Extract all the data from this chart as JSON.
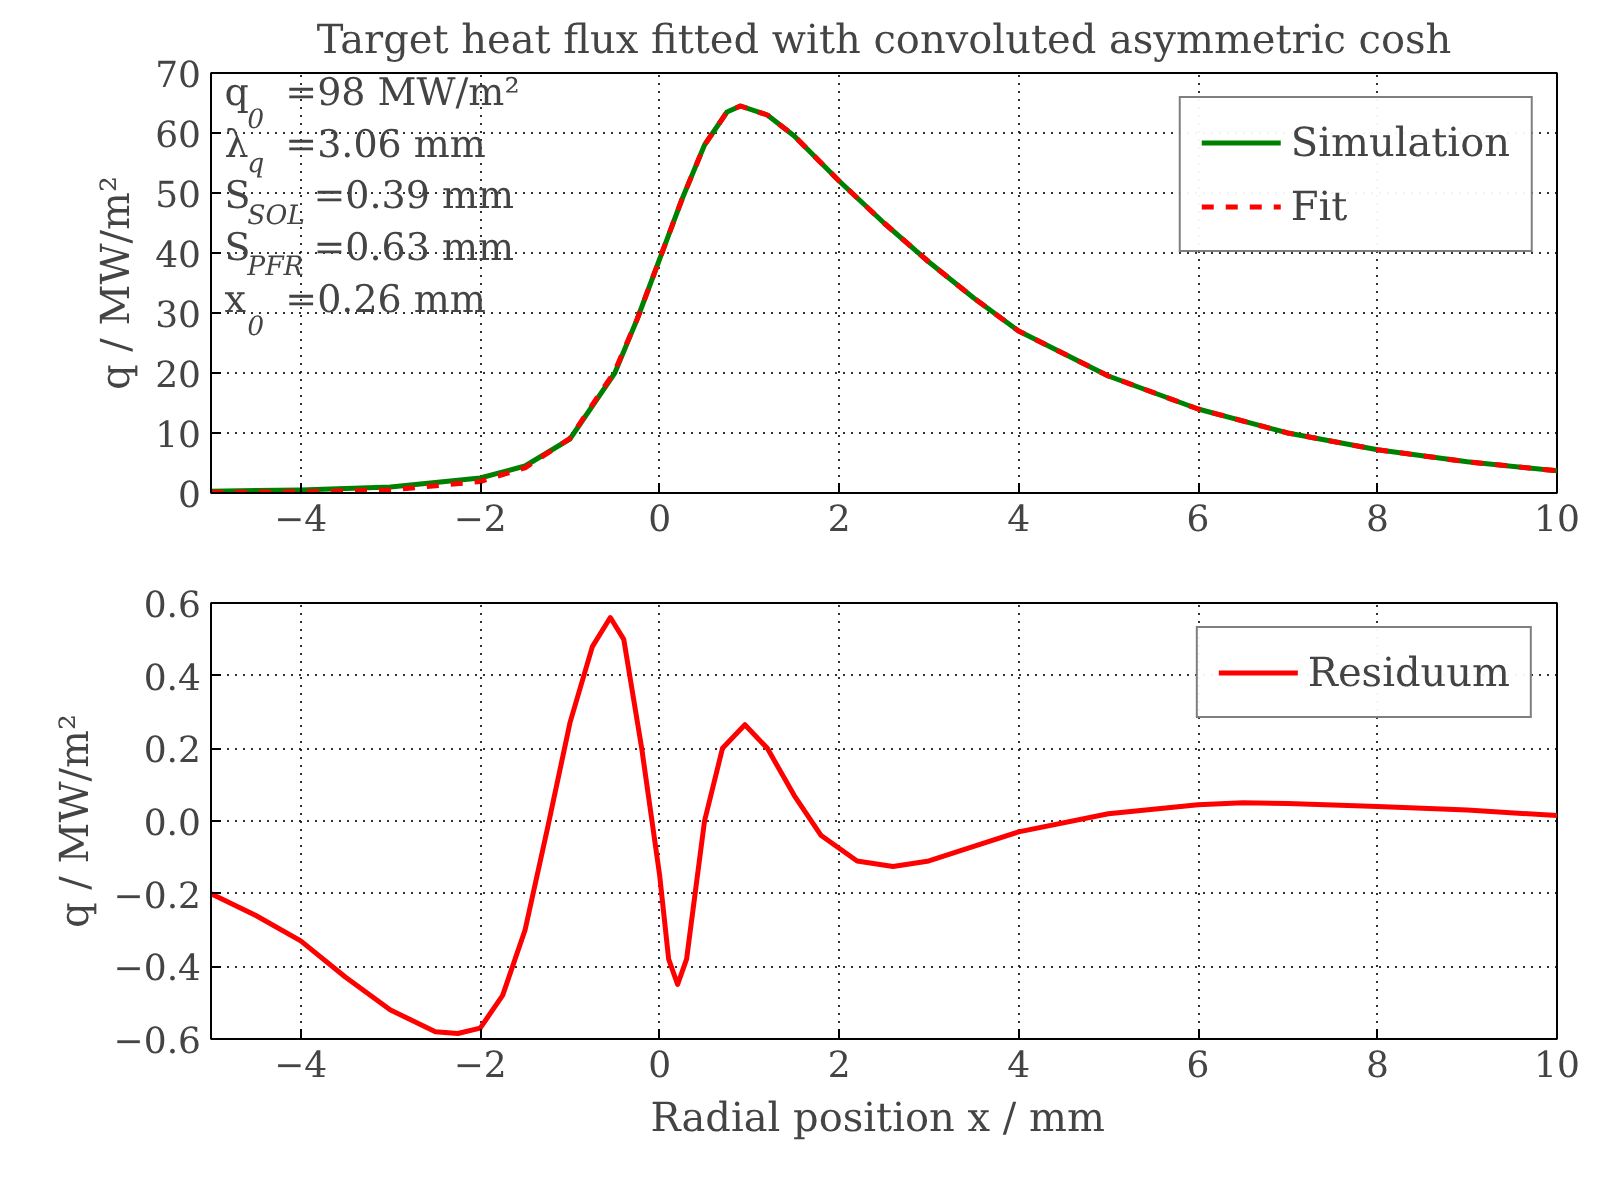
{
  "chart_data": [
    {
      "type": "line",
      "title": "Target heat flux fitted with convoluted asymmetric cosh",
      "ylabel": "q / MW/m²",
      "x": [
        -5,
        -4,
        -3,
        -2,
        -1.5,
        -1,
        -0.5,
        -0.25,
        0,
        0.25,
        0.5,
        0.75,
        0.9,
        1.2,
        1.5,
        2,
        2.5,
        3,
        3.5,
        4,
        5,
        6,
        7,
        8,
        9,
        10
      ],
      "series": [
        {
          "name": "Simulation",
          "color": "#008000",
          "line_style": "solid",
          "values": [
            0.3,
            0.5,
            1.0,
            2.5,
            4.5,
            9,
            20,
            29,
            39,
            49,
            58,
            63.5,
            64.5,
            63,
            59.5,
            52,
            45,
            38.5,
            32.5,
            27,
            19.5,
            14,
            10,
            7.2,
            5.2,
            3.7
          ]
        },
        {
          "name": "Fit",
          "color": "#ff0000",
          "line_style": "dashed",
          "values": [
            0.1,
            0.2,
            0.5,
            1.9,
            4.2,
            9.1,
            20.3,
            29,
            39,
            49,
            58,
            63.5,
            64.5,
            63,
            59.5,
            52,
            45,
            38.5,
            32.5,
            27,
            19.5,
            14,
            10,
            7.2,
            5.2,
            3.7
          ]
        }
      ],
      "xlim": [
        -5,
        10
      ],
      "ylim": [
        0,
        70
      ],
      "xticks": [
        {
          "value": -4,
          "label": "−4"
        },
        {
          "value": -2,
          "label": "−2"
        },
        0,
        2,
        4,
        6,
        8,
        10
      ],
      "yticks": [
        0,
        10,
        20,
        30,
        40,
        50,
        60,
        70
      ],
      "grid": true,
      "legend": "top right",
      "annotations": [
        "q$_{0}$ =98 MW/m²",
        "λ$_{q}$ =3.06 mm",
        "S$_{SOL}$=0.39 mm",
        "S$_{PFR}$=0.63 mm",
        "x$_{0}$ =0.26 mm"
      ]
    },
    {
      "type": "line",
      "xlabel": "Radial position x /  mm",
      "ylabel": "q / MW/m²",
      "x": [
        -5,
        -4.5,
        -4,
        -3.5,
        -3,
        -2.5,
        -2.25,
        -2,
        -1.75,
        -1.5,
        -1.25,
        -1,
        -0.75,
        -0.55,
        -0.4,
        -0.2,
        0,
        0.1,
        0.2,
        0.3,
        0.5,
        0.7,
        0.95,
        1.2,
        1.5,
        1.8,
        2.2,
        2.6,
        3,
        3.5,
        4,
        5,
        6,
        6.5,
        7,
        8,
        9,
        10
      ],
      "series": [
        {
          "name": "Residuum",
          "color": "#ff0000",
          "line_style": "solid",
          "values": [
            -0.2,
            -0.26,
            -0.33,
            -0.43,
            -0.52,
            -0.58,
            -0.585,
            -0.57,
            -0.48,
            -0.3,
            -0.02,
            0.27,
            0.48,
            0.56,
            0.5,
            0.2,
            -0.15,
            -0.38,
            -0.45,
            -0.38,
            0.0,
            0.2,
            0.265,
            0.2,
            0.07,
            -0.04,
            -0.11,
            -0.125,
            -0.11,
            -0.07,
            -0.03,
            0.02,
            0.045,
            0.05,
            0.048,
            0.04,
            0.03,
            0.015
          ]
        }
      ],
      "xlim": [
        -5,
        10
      ],
      "ylim": [
        -0.6,
        0.6
      ],
      "xticks": [
        {
          "value": -4,
          "label": "−4"
        },
        {
          "value": -2,
          "label": "−2"
        },
        0,
        2,
        4,
        6,
        8,
        10
      ],
      "yticks": [
        {
          "value": -0.6,
          "label": "−0.6"
        },
        {
          "value": -0.4,
          "label": "−0.4"
        },
        {
          "value": -0.2,
          "label": "−0.2"
        },
        {
          "value": 0,
          "label": "0.0"
        },
        0.2,
        0.4,
        0.6
      ],
      "grid": true,
      "legend": "top right"
    }
  ]
}
